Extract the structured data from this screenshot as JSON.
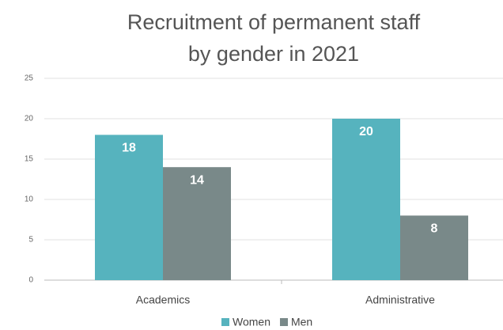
{
  "chart_data": {
    "type": "bar",
    "title": [
      "Recruitment of permanent staff",
      "by gender in 2021"
    ],
    "categories": [
      "Academics",
      "Administrative"
    ],
    "series": [
      {
        "name": "Women",
        "color": "#56b3be",
        "values": [
          18,
          20
        ]
      },
      {
        "name": "Men",
        "color": "#798989",
        "values": [
          14,
          8
        ]
      }
    ],
    "ylim": [
      0,
      25
    ],
    "yticks": [
      0,
      5,
      10,
      15,
      20,
      25
    ],
    "grid": true,
    "legend": "bottom"
  }
}
